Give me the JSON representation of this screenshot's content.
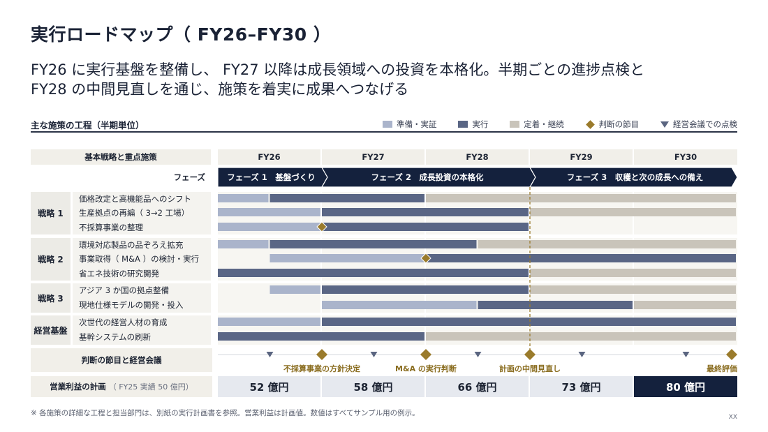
{
  "title": "実行ロードマップ（ FY26–FY30 ）",
  "lead": [
    "FY26 に実行基盤を整備し、 FY27 以降は成長領域への投資を本格化。半期ごとの進捗点検と",
    "FY28 の中間見直しを通じ、施策を着実に成果へつなげる"
  ],
  "subhead": "主な施策の工程（半期単位）",
  "legend": {
    "prep": "準備・実証",
    "exec": "実行",
    "settle": "定着・継続",
    "decision": "判断の節目",
    "review": "経営会議での点検"
  },
  "colors": {
    "prep": "#aab4cb",
    "exec": "#5a6685",
    "settle": "#c9c4ba",
    "navy": "#14213d",
    "gold": "#9a7b2c",
    "tri": "#5a6580"
  },
  "header": {
    "left": "基本戦略と重点施策",
    "years": [
      "FY26",
      "FY27",
      "FY28",
      "FY29",
      "FY30"
    ]
  },
  "phases": {
    "label": "フェーズ",
    "items": [
      {
        "text": "フェーズ 1　基盤づくり",
        "start": 0,
        "end": 1
      },
      {
        "text": "フェーズ 2　成長投資の本格化",
        "start": 1,
        "end": 3
      },
      {
        "text": "フェーズ 3　収穫と次の成長への備え",
        "start": 3,
        "end": 5
      }
    ]
  },
  "groups": [
    {
      "name": "戦略 1",
      "items": [
        {
          "label": "価格改定と高機能品へのシフト",
          "segs": [
            [
              "prep",
              0,
              0.5
            ],
            [
              "exec",
              0.5,
              2
            ],
            [
              "settle",
              2,
              5
            ]
          ]
        },
        {
          "label": "生産拠点の再編（ 3→2 工場）",
          "segs": [
            [
              "prep",
              0,
              1
            ],
            [
              "exec",
              1,
              3
            ],
            [
              "settle",
              3,
              5
            ]
          ]
        },
        {
          "label": "不採算事業の整理",
          "segs": [
            [
              "prep",
              0,
              1
            ],
            [
              "exec",
              1,
              3
            ]
          ],
          "diamond": 1
        }
      ]
    },
    {
      "name": "戦略 2",
      "items": [
        {
          "label": "環境対応製品の品ぞろえ拡充",
          "segs": [
            [
              "prep",
              0,
              0.5
            ],
            [
              "exec",
              0.5,
              2.5
            ],
            [
              "settle",
              2.5,
              5
            ]
          ]
        },
        {
          "label": "事業取得（ M&A ）の検討・実行",
          "segs": [
            [
              "prep",
              0.5,
              2
            ],
            [
              "exec",
              2,
              5
            ]
          ],
          "diamond": 2
        },
        {
          "label": "省エネ技術の研究開発",
          "segs": [
            [
              "exec",
              0,
              3
            ],
            [
              "settle",
              3,
              5
            ]
          ]
        }
      ]
    },
    {
      "name": "戦略 3",
      "items": [
        {
          "label": "アジア 3 か国の拠点整備",
          "segs": [
            [
              "prep",
              0.5,
              1
            ],
            [
              "exec",
              1,
              3
            ],
            [
              "settle",
              3,
              5
            ]
          ]
        },
        {
          "label": "現地仕様モデルの開発・投入",
          "segs": [
            [
              "prep",
              1,
              2.5
            ],
            [
              "exec",
              2.5,
              4
            ],
            [
              "settle",
              4,
              5
            ]
          ]
        }
      ]
    },
    {
      "name": "経営基盤",
      "items": [
        {
          "label": "次世代の経営人材の育成",
          "segs": [
            [
              "prep",
              0,
              1
            ],
            [
              "exec",
              1,
              5
            ]
          ]
        },
        {
          "label": "基幹システムの刷新",
          "segs": [
            [
              "exec",
              0,
              2
            ],
            [
              "settle",
              2,
              5
            ]
          ]
        }
      ]
    }
  ],
  "milestones": {
    "label": "判断の節目と経営会議",
    "reviews": [
      0.5,
      1.5,
      2.5,
      3.5,
      4.5
    ],
    "decisions": [
      {
        "pos": 1,
        "text": "不採算事業の方針決定"
      },
      {
        "pos": 2,
        "text": "M&A の実行判断"
      },
      {
        "pos": 3,
        "text": "計画の中間見直し"
      },
      {
        "pos": 5,
        "text": "最終評価"
      }
    ]
  },
  "midpoint": 3,
  "profit": {
    "label": "営業利益の計画",
    "note": "（ FY25 実績 50 億円）",
    "values": [
      "52 億円",
      "58 億円",
      "66 億円",
      "73 億円",
      "80 億円"
    ]
  },
  "footnote": "※ 各施策の詳細な工程と担当部門は、別紙の実行計画書を参照。営業利益は計画値。数値はすべてサンプル用の例示。",
  "page_number": "XX"
}
